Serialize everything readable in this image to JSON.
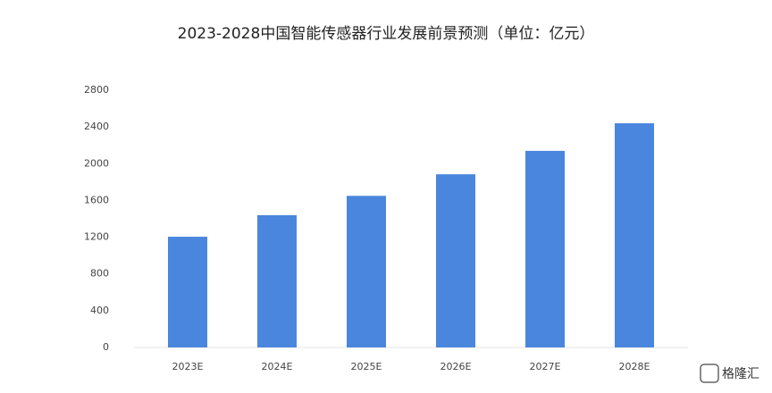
{
  "chart_data": {
    "type": "bar",
    "title": "2023-2028中国智能传感器行业发展前景预测（单位：亿元）",
    "categories": [
      "2023E",
      "2024E",
      "2025E",
      "2026E",
      "2027E",
      "2028E"
    ],
    "values": [
      1205,
      1440,
      1650,
      1885,
      2140,
      2440
    ],
    "color": "#4a86dd",
    "ylim": [
      0,
      2800
    ],
    "yticks": [
      0,
      400,
      800,
      1200,
      1600,
      2000,
      2400,
      2800
    ],
    "grid": false,
    "watermark": "格隆汇"
  }
}
